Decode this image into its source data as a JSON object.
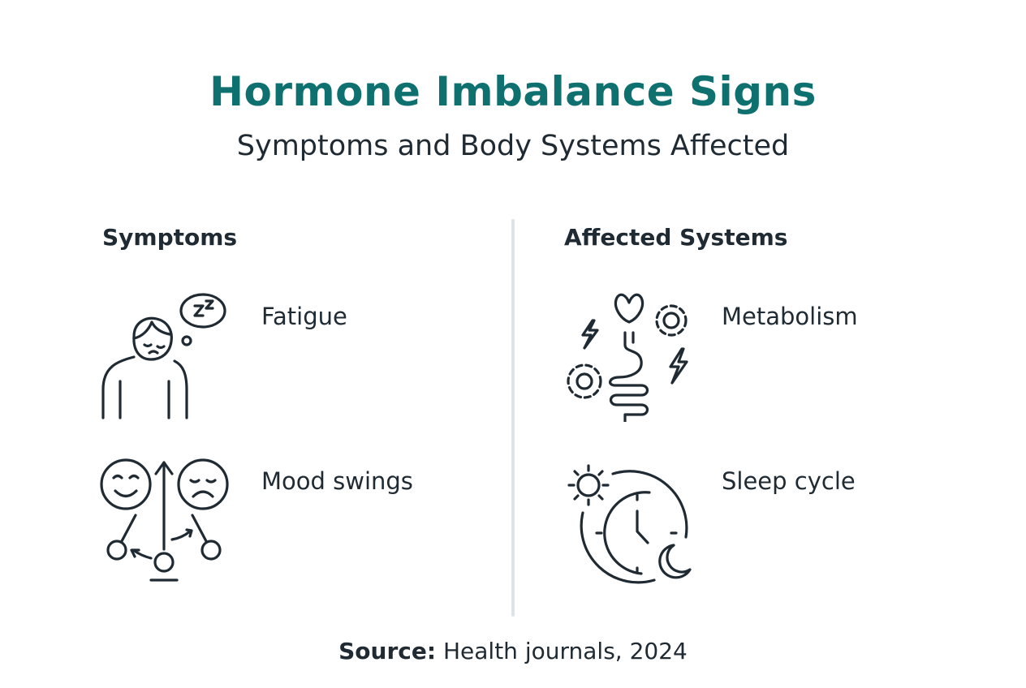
{
  "header": {
    "title": "Hormone Imbalance Signs",
    "subtitle": "Symptoms and Body Systems Affected"
  },
  "colors": {
    "title": "#0f7070",
    "text": "#1f2a33",
    "divider": "#dde3e8"
  },
  "symptoms": {
    "heading": "Symptoms",
    "items": [
      {
        "label": "Fatigue",
        "icon": "sleepy-person-icon"
      },
      {
        "label": "Mood swings",
        "icon": "mood-pendulum-icon"
      }
    ]
  },
  "systems": {
    "heading": "Affected Systems",
    "items": [
      {
        "label": "Metabolism",
        "icon": "digestive-gears-icon"
      },
      {
        "label": "Sleep cycle",
        "icon": "day-night-clock-icon"
      }
    ]
  },
  "footer": {
    "source_label": "Source:",
    "source_text": "Health journals, 2024"
  }
}
